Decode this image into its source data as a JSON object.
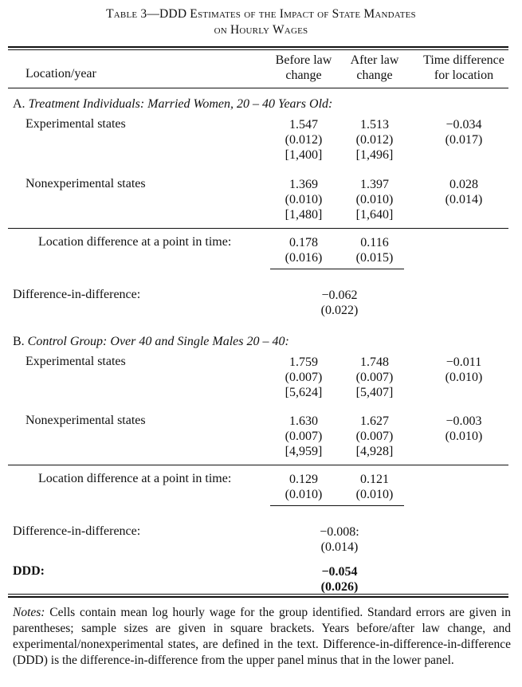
{
  "table": {
    "title_line1": "Table 3—DDD Estimates of the Impact of State Mandates",
    "title_line2": "on Hourly Wages",
    "headers": {
      "location": "Location/year",
      "before_l1": "Before law",
      "before_l2": "change",
      "after_l1": "After law",
      "after_l2": "change",
      "time_l1": "Time difference",
      "time_l2": "for location"
    },
    "panel_a": {
      "title_prefix": "A. ",
      "title_italic": "Treatment Individuals: Married Women, 20 – 40 Years Old:",
      "rows": [
        {
          "label": "Experimental states",
          "before": [
            "1.547",
            "(0.012)",
            "[1,400]"
          ],
          "after": [
            "1.513",
            "(0.012)",
            "[1,496]"
          ],
          "time": [
            "−0.034",
            "(0.017)"
          ]
        },
        {
          "label": "Nonexperimental states",
          "before": [
            "1.369",
            "(0.010)",
            "[1,480]"
          ],
          "after": [
            "1.397",
            "(0.010)",
            "[1,640]"
          ],
          "time": [
            "0.028",
            "(0.014)"
          ]
        }
      ],
      "location_diff": {
        "label": "Location difference at a point in time:",
        "before": [
          "0.178",
          "(0.016)"
        ],
        "after": [
          "0.116",
          "(0.015)"
        ]
      },
      "did": {
        "label": "Difference-in-difference:",
        "value": [
          "−0.062",
          "(0.022)"
        ]
      }
    },
    "panel_b": {
      "title_prefix": "B. ",
      "title_italic": "Control Group: Over 40 and Single Males 20 – 40:",
      "rows": [
        {
          "label": "Experimental states",
          "before": [
            "1.759",
            "(0.007)",
            "[5,624]"
          ],
          "after": [
            "1.748",
            "(0.007)",
            "[5,407]"
          ],
          "time": [
            "−0.011",
            "(0.010)"
          ]
        },
        {
          "label": "Nonexperimental states",
          "before": [
            "1.630",
            "(0.007)",
            "[4,959]"
          ],
          "after": [
            "1.627",
            "(0.007)",
            "[4,928]"
          ],
          "time": [
            "−0.003",
            "(0.010)"
          ]
        }
      ],
      "location_diff": {
        "label": "Location difference at a point in time:",
        "before": [
          "0.129",
          "(0.010)"
        ],
        "after": [
          "0.121",
          "(0.010)"
        ]
      },
      "did": {
        "label": "Difference-in-difference:",
        "value": [
          "−0.008:",
          "(0.014)"
        ]
      }
    },
    "ddd": {
      "label": "DDD:",
      "value": [
        "−0.054",
        "(0.026)"
      ]
    },
    "notes": {
      "label": "Notes:",
      "text": " Cells contain mean log hourly wage for the group identified. Standard errors are given in parentheses; sample sizes are given in square brackets. Years before/after law change, and experimental/nonexperimental states, are defined in the text. Difference-in-difference-in-difference (DDD) is the difference-in-difference from the upper panel minus that in the lower panel."
    }
  }
}
